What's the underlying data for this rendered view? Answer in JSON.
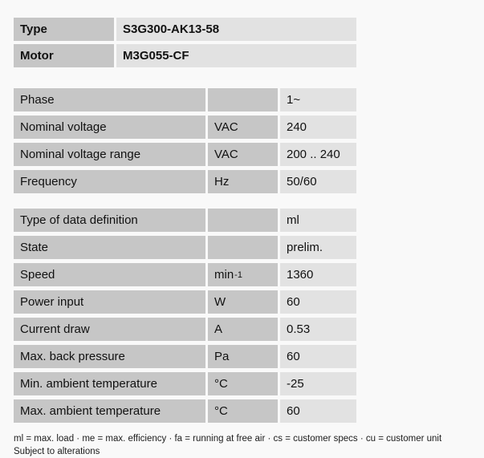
{
  "colors": {
    "label_cell_bg": "#c6c6c6",
    "value_cell_bg": "#e2e2e2",
    "page_bg": "#f9f9f9",
    "text": "#111111"
  },
  "header": {
    "rows": [
      {
        "label": "Type",
        "value": "S3G300-AK13-58"
      },
      {
        "label": "Motor",
        "value": "M3G055-CF"
      }
    ]
  },
  "sections": [
    {
      "rows": [
        {
          "label": "Phase",
          "unit": "",
          "value": "1~"
        },
        {
          "label": "Nominal voltage",
          "unit": "VAC",
          "value": "240"
        },
        {
          "label": "Nominal voltage range",
          "unit": "VAC",
          "value": "200 .. 240"
        },
        {
          "label": "Frequency",
          "unit": "Hz",
          "value": "50/60"
        }
      ]
    },
    {
      "rows": [
        {
          "label": "Type of data definition",
          "unit": "",
          "value": "ml"
        },
        {
          "label": "State",
          "unit": "",
          "value": "prelim."
        },
        {
          "label": "Speed",
          "unit": "min",
          "unit_sup": "-1",
          "value": "1360"
        },
        {
          "label": "Power input",
          "unit": "W",
          "value": "60"
        },
        {
          "label": "Current draw",
          "unit": "A",
          "value": "0.53"
        },
        {
          "label": "Max. back pressure",
          "unit": "Pa",
          "value": "60"
        },
        {
          "label": "Min. ambient temperature",
          "unit": "°C",
          "value": "-25"
        },
        {
          "label": "Max. ambient temperature",
          "unit": "°C",
          "value": "60"
        }
      ]
    }
  ],
  "footer": {
    "legend": "ml = max. load · me = max. efficiency · fa = running at free air · cs = customer specs · cu = customer unit",
    "note": "Subject to alterations"
  }
}
